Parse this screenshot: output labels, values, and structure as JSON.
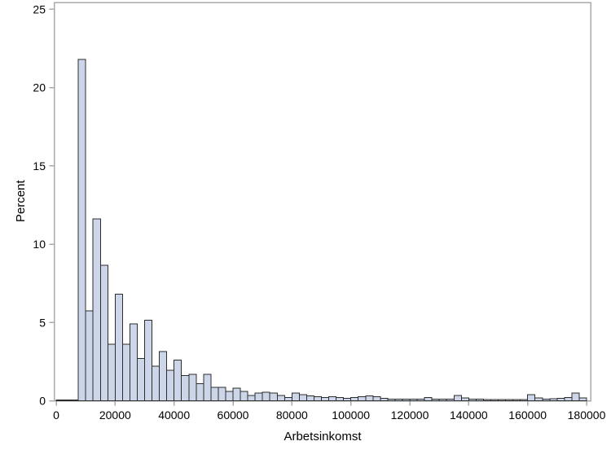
{
  "chart_data": {
    "type": "bar",
    "subtype": "histogram",
    "title": "",
    "xlabel": "Arbetsinkomst",
    "ylabel": "Percent",
    "bin_width": 2500,
    "bin_starts": [
      0,
      2500,
      5000,
      7500,
      10000,
      12500,
      15000,
      17500,
      20000,
      22500,
      25000,
      27500,
      30000,
      32500,
      35000,
      37500,
      40000,
      42500,
      45000,
      47500,
      50000,
      52500,
      55000,
      57500,
      60000,
      62500,
      65000,
      67500,
      70000,
      72500,
      75000,
      77500,
      80000,
      82500,
      85000,
      87500,
      90000,
      92500,
      95000,
      97500,
      100000,
      102500,
      105000,
      107500,
      110000,
      112500,
      115000,
      117500,
      120000,
      122500,
      125000,
      127500,
      130000,
      132500,
      135000,
      137500,
      140000,
      142500,
      145000,
      147500,
      150000,
      152500,
      155000,
      157500,
      160000,
      162500,
      165000,
      167500,
      170000,
      172500,
      175000,
      177500
    ],
    "percents": [
      0.05,
      0.05,
      0.05,
      21.8,
      5.75,
      11.6,
      8.65,
      3.6,
      6.8,
      3.6,
      4.9,
      2.7,
      5.15,
      2.2,
      3.15,
      1.95,
      2.6,
      1.6,
      1.7,
      1.1,
      1.7,
      0.85,
      0.85,
      0.6,
      0.8,
      0.6,
      0.35,
      0.5,
      0.55,
      0.5,
      0.35,
      0.2,
      0.5,
      0.4,
      0.3,
      0.25,
      0.2,
      0.25,
      0.2,
      0.15,
      0.2,
      0.25,
      0.3,
      0.25,
      0.15,
      0.1,
      0.1,
      0.1,
      0.1,
      0.1,
      0.2,
      0.1,
      0.1,
      0.1,
      0.35,
      0.18,
      0.1,
      0.1,
      0.08,
      0.08,
      0.08,
      0.08,
      0.08,
      0.08,
      0.4,
      0.18,
      0.1,
      0.12,
      0.15,
      0.2,
      0.5,
      0.18
    ],
    "x_ticks": [
      0,
      20000,
      40000,
      60000,
      80000,
      100000,
      120000,
      140000,
      160000,
      180000
    ],
    "y_ticks": [
      0,
      5,
      10,
      15,
      20,
      25
    ],
    "xlim": [
      0,
      180000
    ],
    "ylim": [
      0,
      25
    ],
    "grid": false,
    "legend": null,
    "colors": {
      "background": "#ffffff",
      "bar_fill": "#ccd6e8",
      "bar_stroke": "#2d2d2d",
      "axis": "#a9a9a9",
      "text": "#000000"
    }
  }
}
